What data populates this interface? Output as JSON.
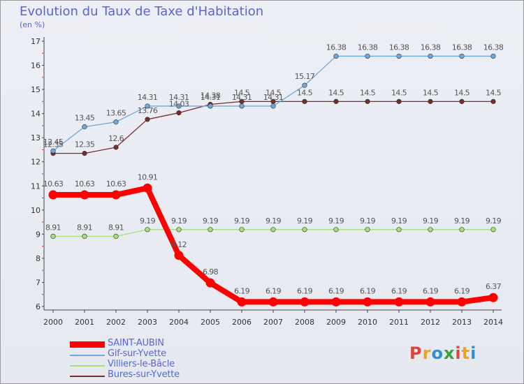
{
  "title": "Evolution du Taux de Taxe d'Habitation",
  "subtitle": "(en %)",
  "logo_text": "Proxiti",
  "logo_colors": [
    "#e0433b",
    "#f0a21c",
    "#2e8fd8",
    "#3aa33c",
    "#e0433b",
    "#f0a21c",
    "#2e8fd8"
  ],
  "chart_data": {
    "type": "line",
    "x": [
      2000,
      2001,
      2002,
      2003,
      2004,
      2005,
      2006,
      2007,
      2008,
      2009,
      2010,
      2011,
      2012,
      2013,
      2014
    ],
    "ylim": [
      6,
      17
    ],
    "yticks": [
      6,
      7,
      8,
      9,
      10,
      11,
      12,
      13,
      14,
      15,
      16,
      17
    ],
    "grid": false,
    "legend_position": "bottom-left",
    "series": [
      {
        "name": "SAINT-AUBIN",
        "color": "#ff0000",
        "values": [
          10.63,
          10.63,
          10.63,
          10.91,
          8.12,
          6.98,
          6.19,
          6.19,
          6.19,
          6.19,
          6.19,
          6.19,
          6.19,
          6.19,
          6.37
        ],
        "labels": [
          "10.63",
          "10.63",
          "10.63",
          "10.91",
          "8.12",
          "6.98",
          "6.19",
          "6.19",
          "6.19",
          "6.19",
          "6.19",
          "6.19",
          "6.19",
          "6.19",
          "6.37"
        ]
      },
      {
        "name": "Gif-sur-Yvette",
        "color": "#6fa8dc",
        "values": [
          12.45,
          13.45,
          13.65,
          14.31,
          14.31,
          14.31,
          14.31,
          14.31,
          15.17,
          16.38,
          16.38,
          16.38,
          16.38,
          16.38,
          16.38
        ],
        "labels": [
          "12.45",
          "13.45",
          "13.65",
          "14.31",
          "14.31",
          "14.31",
          "14.31",
          "14.31",
          "15.17",
          "16.38",
          "16.38",
          "16.38",
          "16.38",
          "16.38",
          "16.38"
        ]
      },
      {
        "name": "Villiers-le-Bâcle",
        "color": "#a6e07a",
        "values": [
          8.91,
          8.91,
          8.91,
          9.19,
          9.19,
          9.19,
          9.19,
          9.19,
          9.19,
          9.19,
          9.19,
          9.19,
          9.19,
          9.19,
          9.19
        ],
        "labels": [
          "8.91",
          "8.91",
          "8.91",
          "9.19",
          "9.19",
          "9.19",
          "9.19",
          "9.19",
          "9.19",
          "9.19",
          "9.19",
          "9.19",
          "9.19",
          "9.19",
          "9.19"
        ]
      },
      {
        "name": "Bures-sur-Yvette",
        "color": "#7b2b2b",
        "values": [
          12.35,
          12.35,
          12.6,
          13.76,
          14.03,
          14.38,
          14.5,
          14.5,
          14.5,
          14.5,
          14.5,
          14.5,
          14.5,
          14.5,
          14.5
        ],
        "labels": [
          "12.35",
          "12.35",
          "12.6",
          "13.76",
          "14.03",
          "14.38",
          "14.5",
          "14.5",
          "14.5",
          "14.5",
          "14.5",
          "14.5",
          "14.5",
          "14.5",
          "14.5"
        ]
      }
    ]
  }
}
